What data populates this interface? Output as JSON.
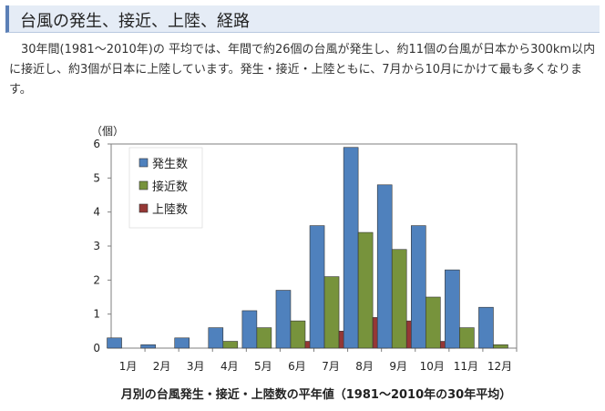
{
  "header": {
    "title": "台風の発生、接近、上陸、経路"
  },
  "intro": {
    "text": "30年間(1981～2010年)の 平均では、年間で約26個の台風が発生し、約11個の台風が日本から300km以内に接近し、約3個が日本に上陸しています。発生・接近・上陸ともに、7月から10月にかけて最も多くなります。"
  },
  "chart_data": {
    "type": "bar",
    "title": "月別の台風発生・接近・上陸数の平年値（1981～2010年の30年平均）",
    "ylabel": "（個）",
    "xlabel": "",
    "ylim": [
      0,
      6
    ],
    "yticks": [
      "0",
      "1",
      "2",
      "3",
      "4",
      "5",
      "6"
    ],
    "grid": false,
    "legend": "top-left",
    "categories": [
      "1月",
      "2月",
      "3月",
      "4月",
      "5月",
      "6月",
      "7月",
      "8月",
      "9月",
      "10月",
      "11月",
      "12月"
    ],
    "series": [
      {
        "name": "発生数",
        "color": "#4f81bd",
        "values": [
          0.3,
          0.1,
          0.3,
          0.6,
          1.1,
          1.7,
          3.6,
          5.9,
          4.8,
          3.6,
          2.3,
          1.2
        ]
      },
      {
        "name": "接近数",
        "color": "#77933c",
        "values": [
          0,
          0,
          0,
          0.2,
          0.6,
          0.8,
          2.1,
          3.4,
          2.9,
          1.5,
          0.6,
          0.1
        ]
      },
      {
        "name": "上陸数",
        "color": "#953735",
        "values": [
          0,
          0,
          0,
          0,
          0.0,
          0.2,
          0.5,
          0.9,
          0.8,
          0.2,
          0.0,
          0
        ]
      }
    ]
  }
}
